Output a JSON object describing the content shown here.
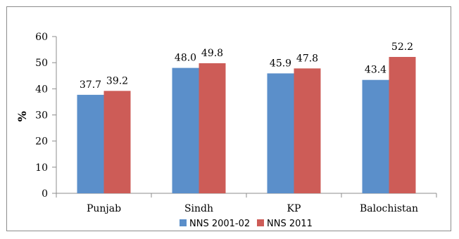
{
  "chart_data": {
    "type": "bar",
    "categories": [
      "Punjab",
      "Sindh",
      "KP",
      "Balochistan"
    ],
    "series": [
      {
        "name": "NNS 2001-02",
        "values": [
          37.7,
          48.0,
          45.9,
          43.4
        ],
        "labels": [
          "37.7",
          "48.0",
          "45.9",
          "43.4"
        ],
        "color": "#5b8fca"
      },
      {
        "name": "NNS 2011",
        "values": [
          39.2,
          49.8,
          47.8,
          52.2
        ],
        "labels": [
          "39.2",
          "49.8",
          "47.8",
          "52.2"
        ],
        "color": "#cd5c57"
      }
    ],
    "title": "",
    "xlabel": "",
    "ylabel": "%",
    "ylim": [
      0,
      60
    ],
    "yticks": [
      0,
      10,
      20,
      30,
      40,
      50,
      60
    ],
    "grid": false,
    "legend_position": "bottom"
  }
}
